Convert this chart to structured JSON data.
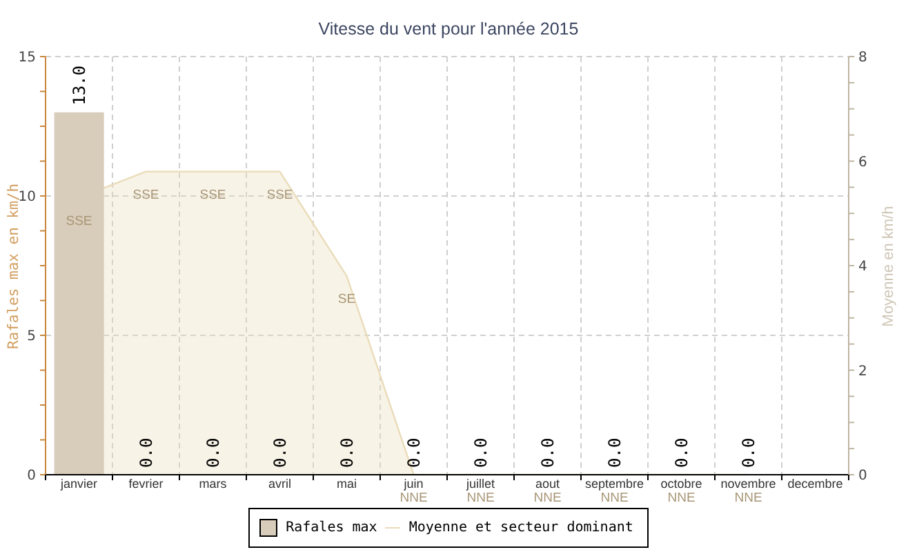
{
  "chart_data": {
    "type": "bar",
    "title": "Vitesse du vent pour l'année 2015",
    "ylabel": "Rafales max en km/h",
    "y2label": "Moyenne en km/h",
    "categories": [
      "janvier",
      "fevrier",
      "mars",
      "avril",
      "mai",
      "juin",
      "juillet",
      "aout",
      "septembre",
      "octobre",
      "novembre",
      "decembre"
    ],
    "series": [
      {
        "name": "Rafales max",
        "color": "#d8ccba",
        "values": [
          13,
          0,
          0,
          0,
          0,
          0,
          0,
          0,
          0,
          0,
          0,
          null
        ],
        "value_labels": [
          "13.0",
          "0.0",
          "0.0",
          "0.0",
          "0.0",
          "0.0",
          "0.0",
          "0.0",
          "0.0",
          "0.0",
          "0.0",
          null
        ]
      },
      {
        "name": "Moyenne et secteur dominant",
        "type": "area",
        "axis": "y2",
        "color": "#eadcb9",
        "values": [
          5.3,
          5.8,
          5.8,
          5.8,
          3.8,
          0,
          0,
          0,
          0,
          0,
          0,
          null
        ],
        "value_labels": [
          "SSE",
          "SSE",
          "SSE",
          "SSE",
          "SE",
          "NNE",
          "NNE",
          "NNE",
          "NNE",
          "NNE",
          "NNE",
          null
        ]
      }
    ],
    "ylim": [
      0,
      15
    ],
    "yticks": [
      0,
      {
        "value": 1.25,
        "label": null
      },
      {
        "value": 2.5,
        "label": null
      },
      {
        "value": 3.75,
        "label": null
      },
      5,
      {
        "value": 6.25,
        "label": null
      },
      {
        "value": 7.5,
        "label": null
      },
      {
        "value": 8.75,
        "label": null
      },
      10,
      {
        "value": 11.25,
        "label": null
      },
      {
        "value": 12.5,
        "label": null
      },
      {
        "value": 13.75,
        "label": null
      },
      15
    ],
    "y2lim": [
      0,
      8
    ],
    "y2ticks": [
      0,
      {
        "value": 0.5,
        "label": null
      },
      {
        "value": 1,
        "label": null
      },
      {
        "value": 1.5,
        "label": null
      },
      2,
      {
        "value": 2.5,
        "label": null
      },
      {
        "value": 3,
        "label": null
      },
      {
        "value": 3.5,
        "label": null
      },
      4,
      {
        "value": 4.5,
        "label": null
      },
      {
        "value": 5,
        "label": null
      },
      {
        "value": 5.5,
        "label": null
      },
      6,
      {
        "value": 6.5,
        "label": null
      },
      {
        "value": 7,
        "label": null
      },
      {
        "value": 7.5,
        "label": null
      },
      8
    ],
    "grid": true,
    "legend": "bottom"
  }
}
